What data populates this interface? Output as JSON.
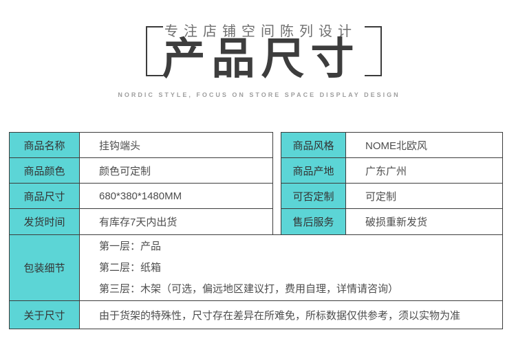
{
  "header": {
    "subtitle_cn": "专注店铺空间陈列设计",
    "title": "产品尺寸",
    "subtitle_en": "NORDIC STYLE, FOCUS ON STORE SPACE DISPLAY DESIGN"
  },
  "colors": {
    "accent": "#5cd5d6",
    "border": "#3b3b3b",
    "title_text": "#3d3d3d",
    "value_text": "#4d4d4d"
  },
  "spec_table": {
    "left_rows": [
      {
        "label": "商品名称",
        "value": "挂钩端头"
      },
      {
        "label": "商品颜色",
        "value": "颜色可定制"
      },
      {
        "label": "商品尺寸",
        "value": "680*380*1480MM"
      },
      {
        "label": "发货时间",
        "value": "有库存7天内出货"
      }
    ],
    "right_rows": [
      {
        "label": "商品风格",
        "value": "NOME北欧风"
      },
      {
        "label": "商品产地",
        "value": "广东广州"
      },
      {
        "label": "可否定制",
        "value": "可定制"
      },
      {
        "label": "售后服务",
        "value": "破损重新发货"
      }
    ],
    "packaging": {
      "label": "包装细节",
      "lines": [
        "第一层：产品",
        "第二层：纸箱",
        "第三层：木架（可选，偏远地区建议打，费用自理，详情请咨询）"
      ]
    },
    "about_size": {
      "label": "关于尺寸",
      "value": "由于货架的特殊性，尺寸存在差异在所难免，所标数据仅供参考，须以实物为准"
    }
  }
}
